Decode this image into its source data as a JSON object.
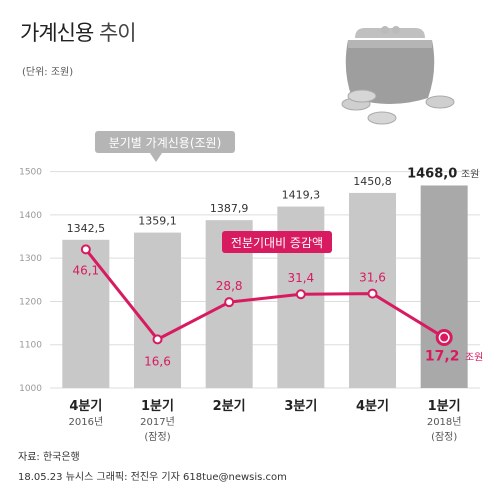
{
  "title_main": "가계신용",
  "title_sub": "추이",
  "unit_note": "(단위: 조원)",
  "legend_series": "분기별 가계신용(조원)",
  "legend_change": "전분기대비 증감액",
  "source": "자료: 한국은행",
  "credit": "18.05.23 뉴시스 그래픽: 전진우 기자 618tue@newsis.com",
  "colors": {
    "bar": "#c8c8c8",
    "bar_last": "#a9a9a9",
    "line": "#d81b60",
    "grid": "#dddddd"
  },
  "chart_data": {
    "type": "bar",
    "ylim": [
      1000,
      1550
    ],
    "yticks": [
      1000,
      1100,
      1200,
      1300,
      1400,
      1500
    ],
    "categories": [
      {
        "q": "4분기",
        "year": "2016년",
        "note": ""
      },
      {
        "q": "1분기",
        "year": "2017년",
        "note": "(잠정)"
      },
      {
        "q": "2분기",
        "year": "",
        "note": ""
      },
      {
        "q": "3분기",
        "year": "",
        "note": ""
      },
      {
        "q": "4분기",
        "year": "",
        "note": ""
      },
      {
        "q": "1분기",
        "year": "2018년",
        "note": "(잠정)"
      }
    ],
    "series": [
      {
        "name": "분기별 가계신용",
        "type": "bar",
        "values": [
          1342.5,
          1359.1,
          1387.9,
          1419.3,
          1450.8,
          1468.0
        ],
        "labels": [
          "1342,5",
          "1359,1",
          "1387,9",
          "1419,3",
          "1450,8",
          "1468,0"
        ]
      },
      {
        "name": "전분기대비 증감액",
        "type": "line",
        "values": [
          46.1,
          16.6,
          28.8,
          31.4,
          31.6,
          17.2
        ],
        "labels": [
          "46,1",
          "16,6",
          "28,8",
          "31,4",
          "31,6",
          "17,2"
        ]
      }
    ],
    "last_unit": "조원"
  }
}
